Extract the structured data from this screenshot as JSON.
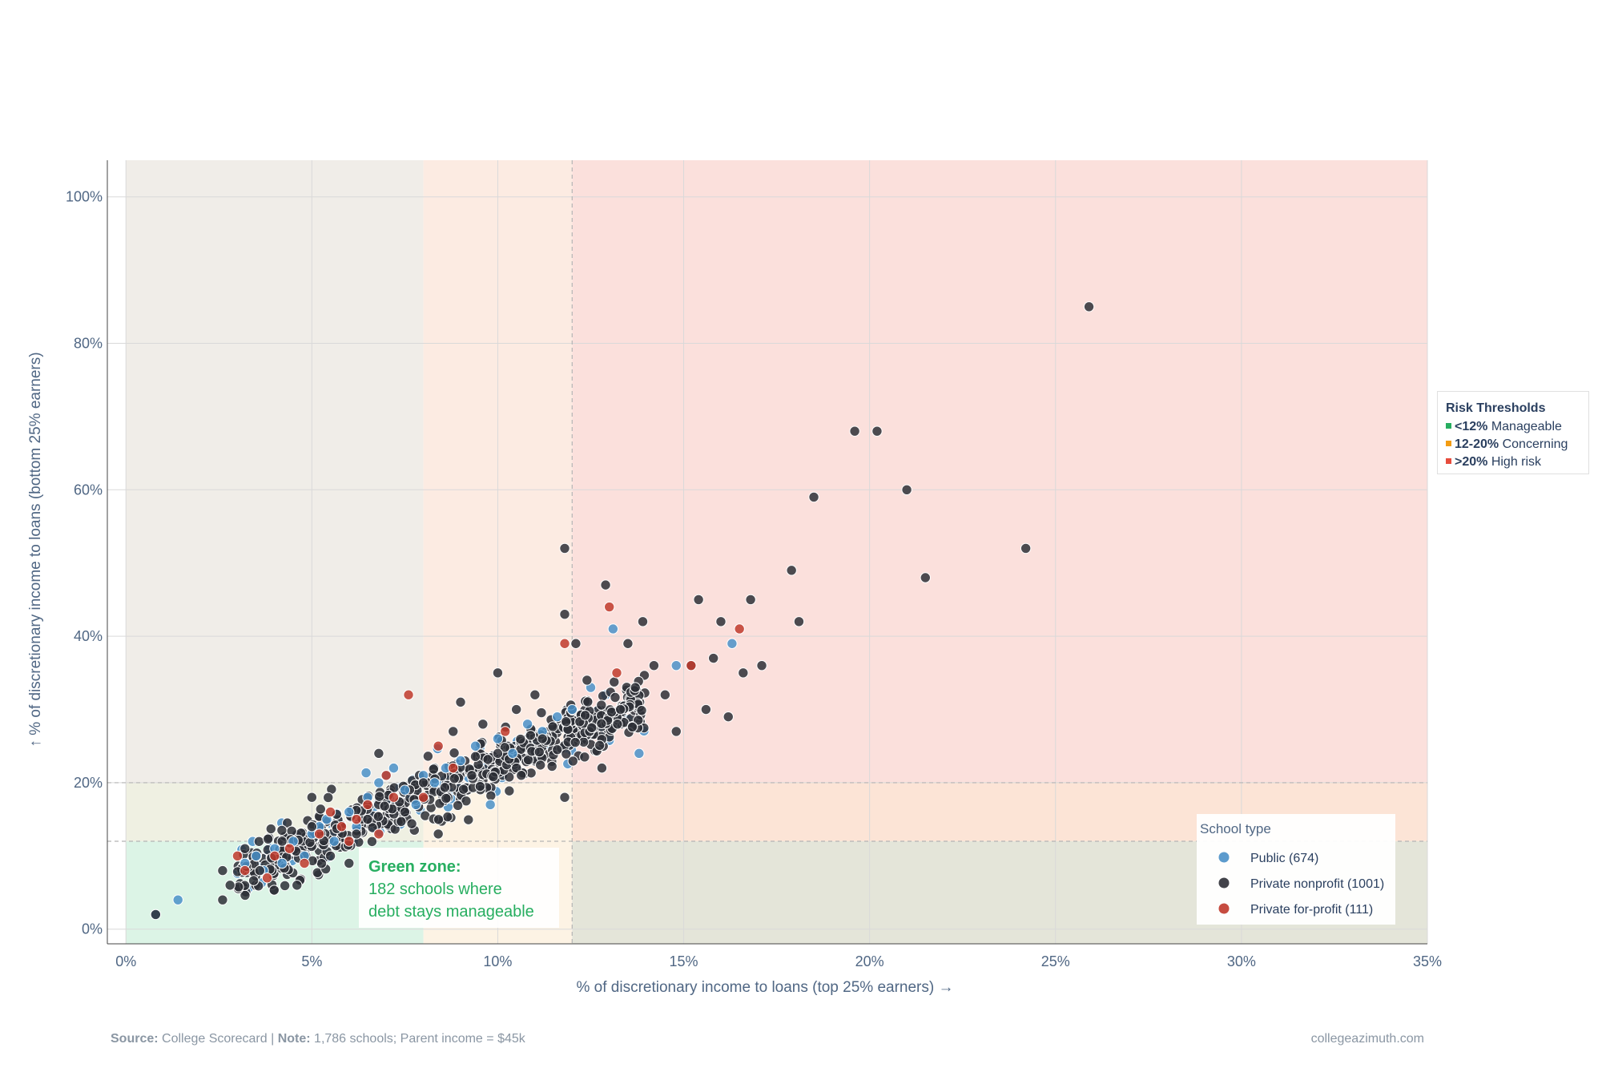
{
  "chart_data": {
    "type": "scatter",
    "xlabel": "% of discretionary income to loans (top 25% earners) →",
    "ylabel": "↑ % of discretionary income to loans (bottom 25% earners)",
    "xlim": [
      -0.5,
      35
    ],
    "ylim": [
      -2,
      105
    ],
    "x_ticks": [
      "0%",
      "5%",
      "10%",
      "15%",
      "20%",
      "25%",
      "30%",
      "35%"
    ],
    "y_ticks": [
      "0%",
      "20%",
      "40%",
      "60%",
      "80%",
      "100%"
    ],
    "grid": true,
    "legend_placement": "bottom-right",
    "legend_title": "School type",
    "series": [
      {
        "name": "Public (674)",
        "color": "#4a90c8",
        "points": [
          [
            0.8,
            2
          ],
          [
            1.4,
            4
          ],
          [
            3.2,
            9
          ],
          [
            3.5,
            10
          ],
          [
            3.7,
            8
          ],
          [
            4.0,
            11
          ],
          [
            4.2,
            9
          ],
          [
            4.5,
            12
          ],
          [
            4.8,
            10
          ],
          [
            5.0,
            13
          ],
          [
            5.2,
            14
          ],
          [
            5.4,
            15
          ],
          [
            5.6,
            12
          ],
          [
            6.0,
            16
          ],
          [
            6.2,
            14
          ],
          [
            6.5,
            18
          ],
          [
            6.8,
            20
          ],
          [
            7.0,
            21
          ],
          [
            7.2,
            22
          ],
          [
            7.5,
            19
          ],
          [
            7.8,
            17
          ],
          [
            8.0,
            21
          ],
          [
            8.3,
            20
          ],
          [
            8.6,
            22
          ],
          [
            9.0,
            23
          ],
          [
            9.4,
            25
          ],
          [
            9.8,
            17
          ],
          [
            10.0,
            26
          ],
          [
            10.4,
            24
          ],
          [
            10.8,
            28
          ],
          [
            11.2,
            27
          ],
          [
            11.6,
            29
          ],
          [
            12.0,
            30
          ],
          [
            12.5,
            33
          ],
          [
            13.1,
            41
          ],
          [
            13.8,
            24
          ],
          [
            14.8,
            36
          ],
          [
            16.3,
            39
          ]
        ]
      },
      {
        "name": "Private nonprofit (1001)",
        "color": "#2d2f36",
        "points": [
          [
            0.8,
            2
          ],
          [
            2.6,
            4
          ],
          [
            2.6,
            8
          ],
          [
            2.8,
            6
          ],
          [
            3.2,
            11
          ],
          [
            3.6,
            8
          ],
          [
            4.2,
            12
          ],
          [
            4.6,
            6
          ],
          [
            5.0,
            14
          ],
          [
            5.0,
            18
          ],
          [
            5.5,
            10
          ],
          [
            6.0,
            9
          ],
          [
            6.2,
            13
          ],
          [
            6.5,
            15
          ],
          [
            6.8,
            24
          ],
          [
            7.5,
            16
          ],
          [
            8.0,
            20
          ],
          [
            8.4,
            13
          ],
          [
            8.8,
            27
          ],
          [
            9.0,
            31
          ],
          [
            9.3,
            21
          ],
          [
            9.6,
            28
          ],
          [
            10.0,
            35
          ],
          [
            10.0,
            24
          ],
          [
            10.5,
            30
          ],
          [
            11.0,
            32
          ],
          [
            11.2,
            26
          ],
          [
            11.8,
            18
          ],
          [
            11.8,
            52
          ],
          [
            11.8,
            43
          ],
          [
            12.1,
            39
          ],
          [
            12.4,
            34
          ],
          [
            12.8,
            22
          ],
          [
            12.9,
            47
          ],
          [
            13.3,
            30
          ],
          [
            13.5,
            39
          ],
          [
            13.7,
            33
          ],
          [
            13.9,
            42
          ],
          [
            14.2,
            36
          ],
          [
            14.5,
            32
          ],
          [
            14.8,
            27
          ],
          [
            15.2,
            36
          ],
          [
            15.4,
            45
          ],
          [
            15.6,
            30
          ],
          [
            15.8,
            37
          ],
          [
            16.0,
            42
          ],
          [
            16.2,
            29
          ],
          [
            16.6,
            35
          ],
          [
            16.8,
            45
          ],
          [
            17.1,
            36
          ],
          [
            17.9,
            49
          ],
          [
            18.1,
            42
          ],
          [
            18.5,
            59
          ],
          [
            19.6,
            68
          ],
          [
            20.2,
            68
          ],
          [
            21.0,
            60
          ],
          [
            21.5,
            48
          ],
          [
            24.2,
            52
          ],
          [
            25.9,
            85
          ]
        ]
      },
      {
        "name": "Private for-profit (111)",
        "color": "#c0392b",
        "points": [
          [
            3.0,
            10
          ],
          [
            3.2,
            8
          ],
          [
            3.8,
            7
          ],
          [
            4.0,
            10
          ],
          [
            4.4,
            11
          ],
          [
            4.8,
            9
          ],
          [
            5.2,
            13
          ],
          [
            5.5,
            16
          ],
          [
            5.8,
            14
          ],
          [
            6.0,
            12
          ],
          [
            6.2,
            15
          ],
          [
            6.5,
            17
          ],
          [
            6.8,
            13
          ],
          [
            7.0,
            21
          ],
          [
            7.2,
            18
          ],
          [
            7.6,
            32
          ],
          [
            8.0,
            18
          ],
          [
            8.4,
            25
          ],
          [
            8.8,
            22
          ],
          [
            10.2,
            27
          ],
          [
            11.8,
            39
          ],
          [
            13.0,
            44
          ],
          [
            13.2,
            35
          ],
          [
            15.2,
            36
          ],
          [
            16.5,
            41
          ]
        ]
      }
    ],
    "regions": [
      {
        "x": [
          0,
          8
        ],
        "y": [
          12,
          105
        ],
        "color": "#f0ede8"
      },
      {
        "x": [
          8,
          12
        ],
        "y": [
          20,
          105
        ],
        "color": "#fcebe2"
      },
      {
        "x": [
          12,
          35
        ],
        "y": [
          20,
          105
        ],
        "color": "#fbe0dc"
      },
      {
        "x": [
          0,
          8
        ],
        "y": [
          -2,
          12
        ],
        "color": "#dcf4e6"
      },
      {
        "x": [
          0,
          8
        ],
        "y": [
          12,
          20
        ],
        "color": "#eff0e2"
      },
      {
        "x": [
          8,
          12
        ],
        "y": [
          -2,
          20
        ],
        "color": "#fdf3e4"
      },
      {
        "x": [
          12,
          35
        ],
        "y": [
          12,
          20
        ],
        "color": "#fce4d6"
      },
      {
        "x": [
          12,
          35
        ],
        "y": [
          -2,
          12
        ],
        "color": "#e4e5d9"
      }
    ],
    "reference_lines": {
      "x": [
        12
      ],
      "y": [
        12,
        20
      ]
    }
  },
  "risk_thresholds": {
    "title": "Risk Thresholds",
    "items": [
      {
        "bold": "<12%",
        "label": " Manageable",
        "color": "#27ae60"
      },
      {
        "bold": "12-20%",
        "label": " Concerning",
        "color": "#f39c12"
      },
      {
        "bold": ">20%",
        "label": " High risk",
        "color": "#e74c3c"
      }
    ]
  },
  "annotation": {
    "title": "Green zone:",
    "line1": "182 schools where",
    "line2": "debt stays manageable"
  },
  "footer": {
    "source_label": "Source:",
    "source_text": " College Scorecard | ",
    "note_label": "Note:",
    "note_text": " 1,786 schools; Parent income = $45k",
    "site": "collegeazimuth.com"
  }
}
